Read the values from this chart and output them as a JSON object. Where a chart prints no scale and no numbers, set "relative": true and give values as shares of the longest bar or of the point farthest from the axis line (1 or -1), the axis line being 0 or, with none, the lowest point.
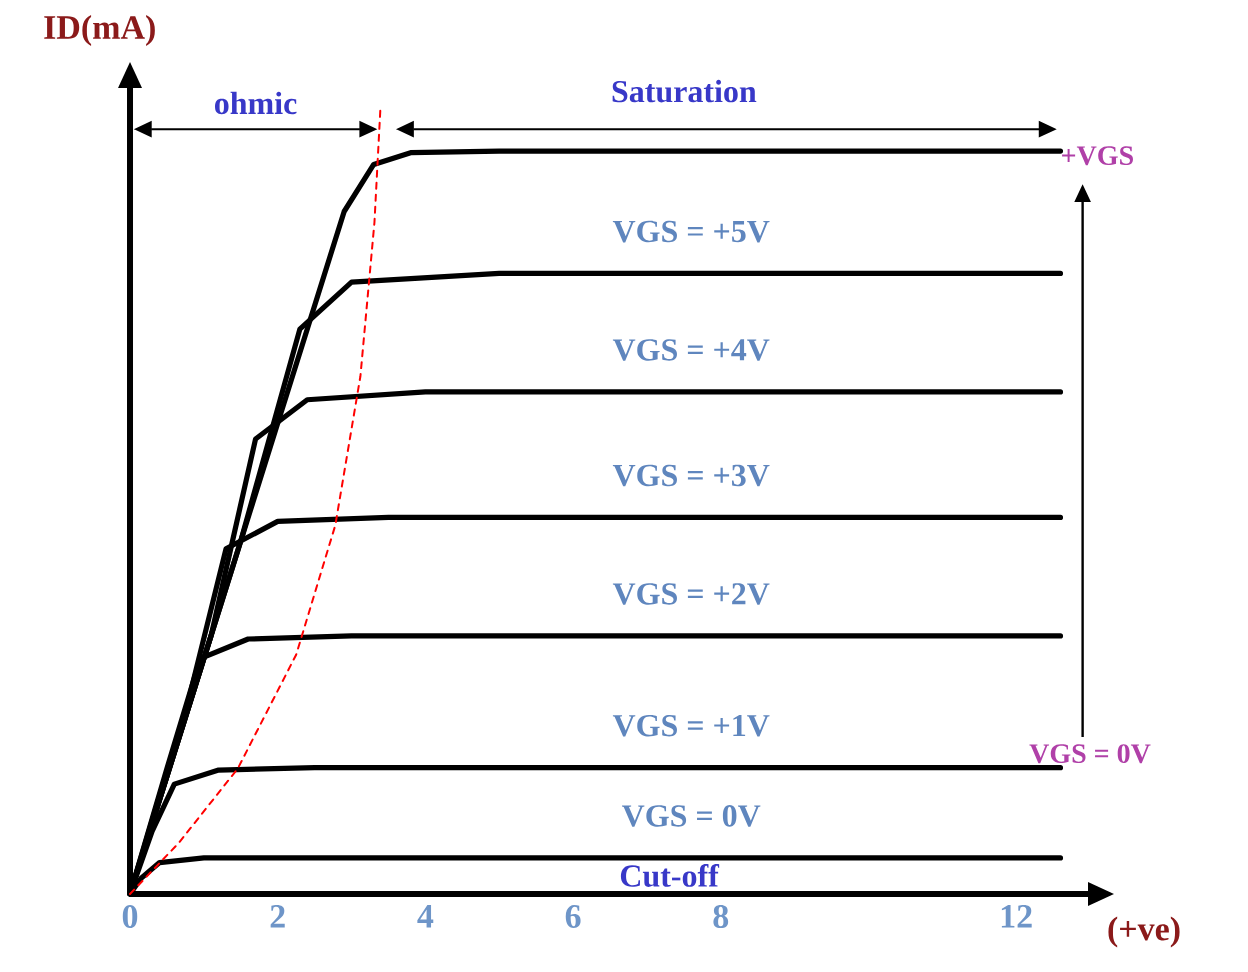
{
  "chart_data": {
    "type": "line",
    "relative": true,
    "ylabel": "ID(mA)",
    "xlabel": "(+ve)",
    "xlim": [
      0,
      13
    ],
    "xticks": [
      0,
      2,
      4,
      6,
      8,
      12
    ],
    "series": [
      {
        "color": "#000000",
        "line_style": "solid",
        "x": [
          0,
          1,
          2,
          2.9,
          3.3,
          3.8,
          5,
          12.6
        ],
        "values": [
          0,
          0.3,
          0.6,
          0.87,
          0.93,
          0.945,
          0.947,
          0.947
        ]
      },
      {
        "name": "VGS = +5V",
        "color": "#000000",
        "line_style": "solid",
        "x": [
          0,
          1.5,
          2.3,
          3,
          5,
          12.6
        ],
        "values": [
          0,
          0.45,
          0.72,
          0.78,
          0.791,
          0.791
        ]
      },
      {
        "name": "VGS = +4V",
        "color": "#000000",
        "line_style": "solid",
        "x": [
          0,
          1.1,
          1.7,
          2.4,
          4,
          12.6
        ],
        "values": [
          0,
          0.33,
          0.58,
          0.63,
          0.64,
          0.64
        ]
      },
      {
        "name": "VGS = +3V",
        "color": "#000000",
        "line_style": "solid",
        "x": [
          0,
          0.8,
          1.3,
          2,
          3.5,
          12.6
        ],
        "values": [
          0,
          0.25,
          0.44,
          0.475,
          0.48,
          0.48
        ]
      },
      {
        "name": "VGS = +2V",
        "color": "#000000",
        "line_style": "solid",
        "x": [
          0,
          0.5,
          0.95,
          1.6,
          3,
          12.6
        ],
        "values": [
          0,
          0.16,
          0.3,
          0.325,
          0.329,
          0.329
        ]
      },
      {
        "name": "VGS = +1V",
        "color": "#000000",
        "line_style": "solid",
        "x": [
          0,
          0.3,
          0.6,
          1.2,
          2.5,
          12.6
        ],
        "values": [
          0,
          0.08,
          0.14,
          0.158,
          0.161,
          0.161
        ]
      },
      {
        "name": "VGS = 0V",
        "color": "#000000",
        "line_style": "solid",
        "x": [
          0,
          0.15,
          0.4,
          1,
          12.6
        ],
        "values": [
          0,
          0.02,
          0.04,
          0.046,
          0.046
        ]
      },
      {
        "color": "#ff0000",
        "line_style": "dashed",
        "x": [
          0,
          0.66,
          1.46,
          2.25,
          2.78,
          3.12,
          3.31,
          3.39
        ],
        "values": [
          0,
          0.065,
          0.16,
          0.305,
          0.47,
          0.66,
          0.856,
          1.0
        ]
      }
    ],
    "annotations": [
      "ohmic",
      "Saturation",
      "Cut-off",
      "+VGS",
      "VGS = 0V"
    ]
  }
}
